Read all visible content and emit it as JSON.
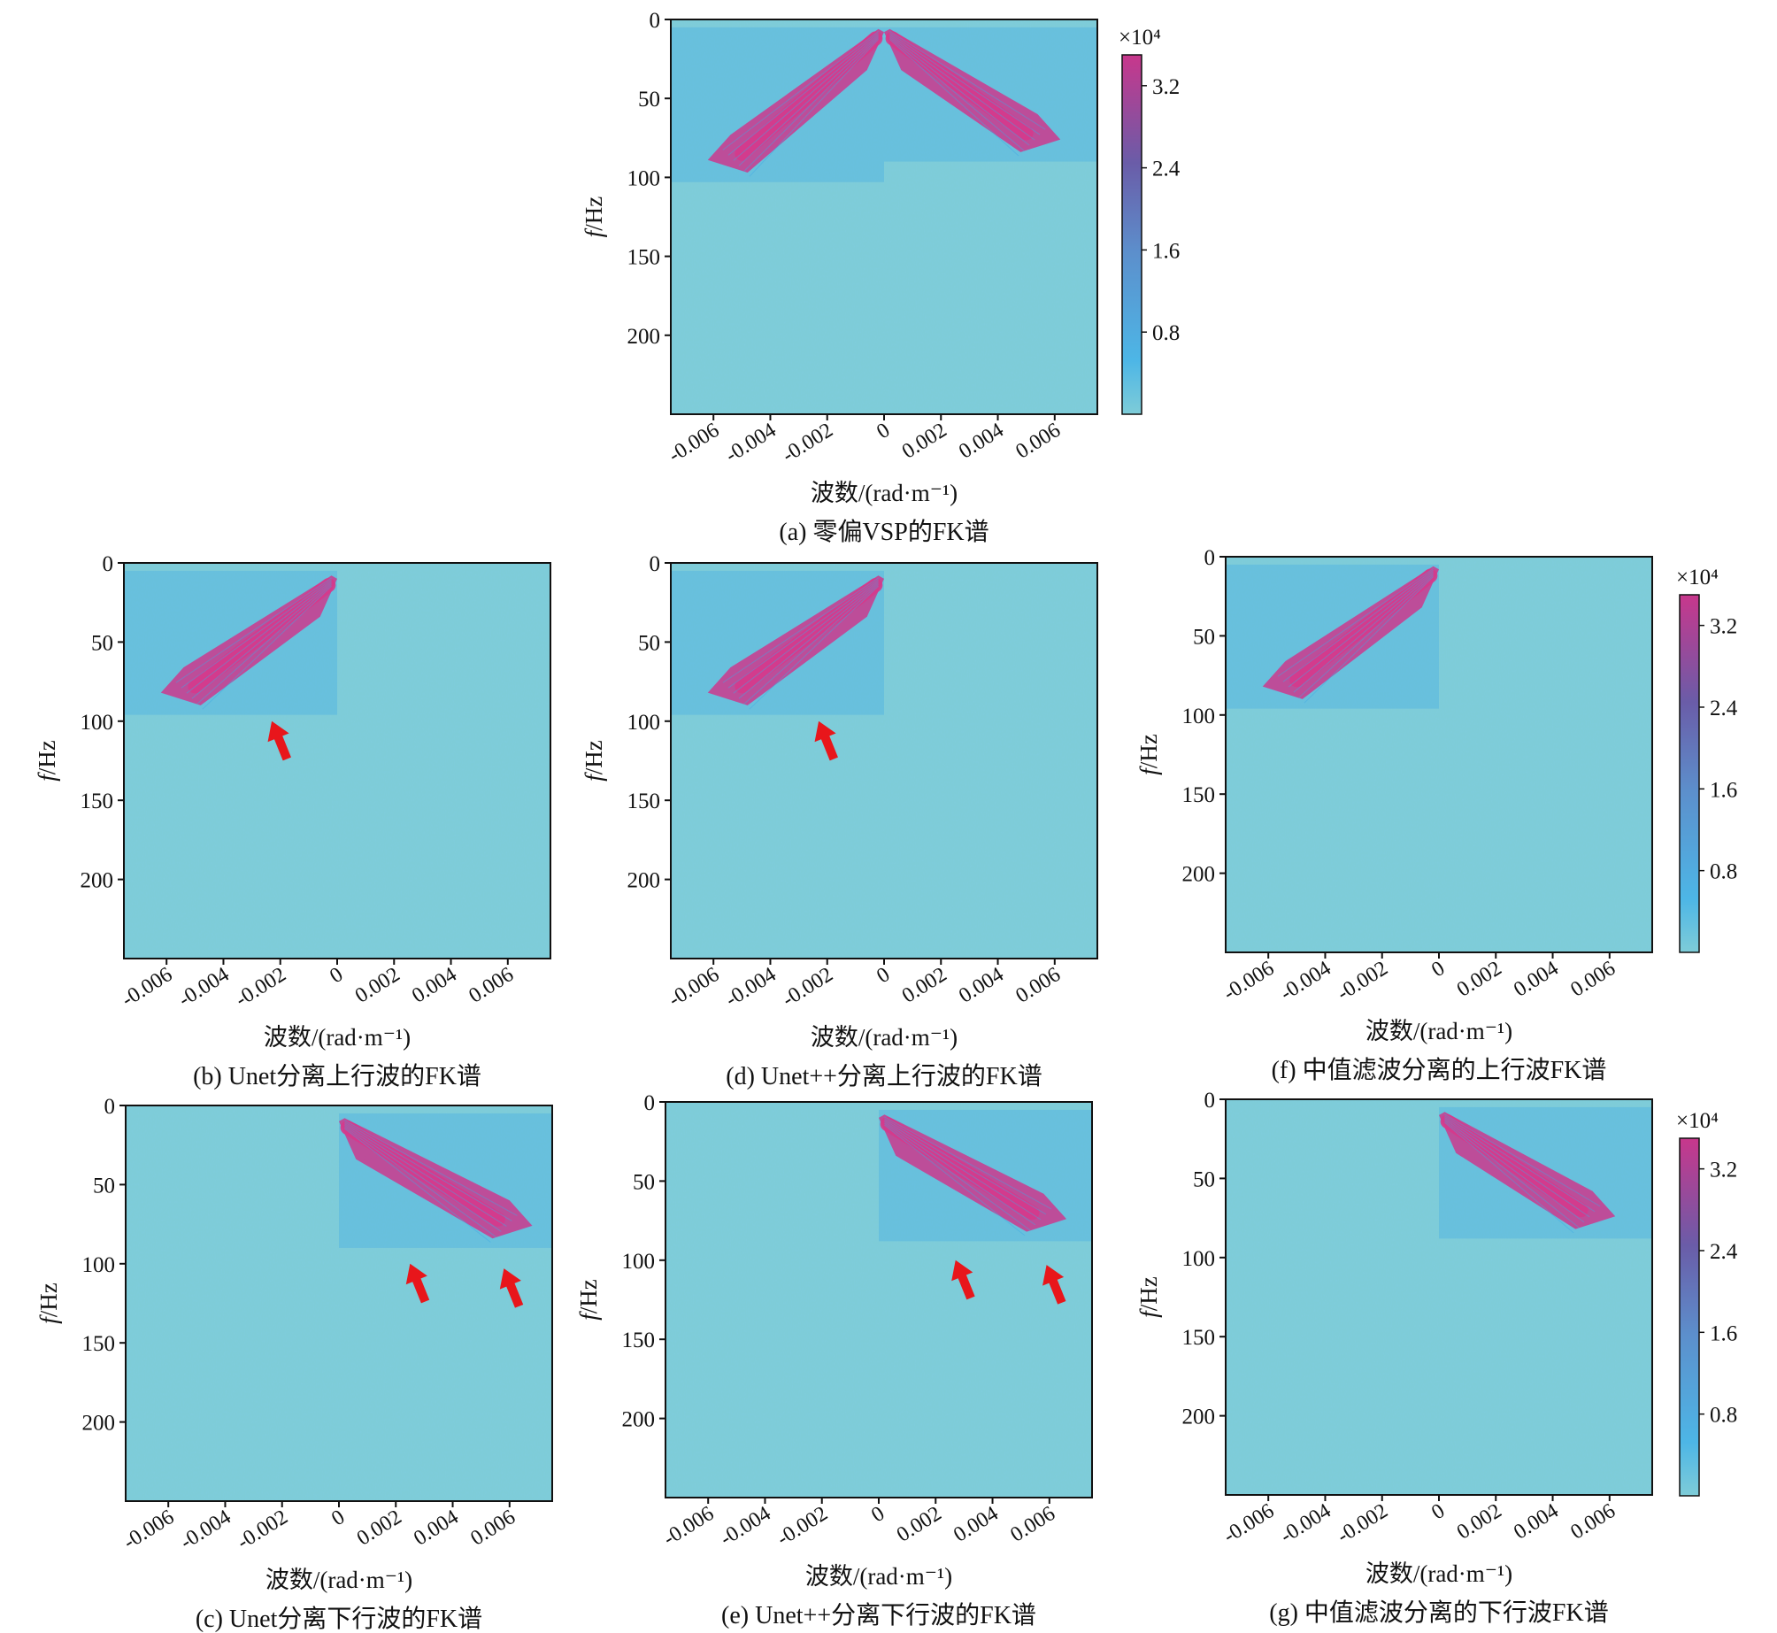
{
  "chart_data": [
    {
      "id": "a",
      "type": "heatmap",
      "title": "(a) 零偏VSP的FK谱",
      "xlabel": "波数/(rad·m⁻¹)",
      "ylabel": "f/Hz",
      "xlim": [
        -0.0075,
        0.0075
      ],
      "ylim": [
        250,
        0
      ],
      "xticks": [
        -0.006,
        -0.004,
        -0.002,
        0,
        0.002,
        0.004,
        0.006
      ],
      "xtick_labels": [
        "-0.006",
        "-0.004",
        "-0.002",
        "0",
        "0.002",
        "0.004",
        "0.006"
      ],
      "yticks": [
        0,
        50,
        100,
        150,
        200
      ],
      "ytick_labels": [
        "0",
        "50",
        "100",
        "150",
        "200"
      ],
      "energy_bands": [
        {
          "name": "upgoing",
          "k": [
            -0.0062,
            0.0
          ],
          "f": [
            95,
            8
          ]
        },
        {
          "name": "downgoing",
          "k": [
            0.0,
            0.0062
          ],
          "f": [
            8,
            82
          ]
        }
      ],
      "colorbar": true,
      "arrows": []
    },
    {
      "id": "b",
      "type": "heatmap",
      "title": "(b) Unet分离上行波的FK谱",
      "xlabel": "波数/(rad·m⁻¹)",
      "ylabel": "f/Hz",
      "xlim": [
        -0.0075,
        0.0075
      ],
      "ylim": [
        250,
        0
      ],
      "xticks": [
        -0.006,
        -0.004,
        -0.002,
        0,
        0.002,
        0.004,
        0.006
      ],
      "xtick_labels": [
        "-0.006",
        "-0.004",
        "-0.002",
        "0",
        "0.002",
        "0.004",
        "0.006"
      ],
      "yticks": [
        0,
        50,
        100,
        150,
        200
      ],
      "ytick_labels": [
        "0",
        "50",
        "100",
        "150",
        "200"
      ],
      "energy_bands": [
        {
          "name": "upgoing",
          "k": [
            -0.0062,
            0.0
          ],
          "f": [
            88,
            10
          ]
        }
      ],
      "colorbar": false,
      "arrows": [
        {
          "k": -0.0023,
          "f": 100
        }
      ]
    },
    {
      "id": "d",
      "type": "heatmap",
      "title": "(d) Unet++分离上行波的FK谱",
      "xlabel": "波数/(rad·m⁻¹)",
      "ylabel": "f/Hz",
      "xlim": [
        -0.0075,
        0.0075
      ],
      "ylim": [
        250,
        0
      ],
      "xticks": [
        -0.006,
        -0.004,
        -0.002,
        0,
        0.002,
        0.004,
        0.006
      ],
      "xtick_labels": [
        "-0.006",
        "-0.004",
        "-0.002",
        "0",
        "0.002",
        "0.004",
        "0.006"
      ],
      "yticks": [
        0,
        50,
        100,
        150,
        200
      ],
      "ytick_labels": [
        "0",
        "50",
        "100",
        "150",
        "200"
      ],
      "energy_bands": [
        {
          "name": "upgoing",
          "k": [
            -0.0062,
            0.0
          ],
          "f": [
            88,
            10
          ]
        }
      ],
      "colorbar": false,
      "arrows": [
        {
          "k": -0.0023,
          "f": 100
        }
      ]
    },
    {
      "id": "f",
      "type": "heatmap",
      "title": "(f) 中值滤波分离的上行波FK谱",
      "xlabel": "波数/(rad·m⁻¹)",
      "ylabel": "f/Hz",
      "xlim": [
        -0.0075,
        0.0075
      ],
      "ylim": [
        250,
        0
      ],
      "xticks": [
        -0.006,
        -0.004,
        -0.002,
        0,
        0.002,
        0.004,
        0.006
      ],
      "xtick_labels": [
        "-0.006",
        "-0.004",
        "-0.002",
        "0",
        "0.002",
        "0.004",
        "0.006"
      ],
      "yticks": [
        0,
        50,
        100,
        150,
        200
      ],
      "ytick_labels": [
        "0",
        "50",
        "100",
        "150",
        "200"
      ],
      "energy_bands": [
        {
          "name": "upgoing",
          "k": [
            -0.0062,
            0.0
          ],
          "f": [
            88,
            8
          ]
        }
      ],
      "colorbar": true,
      "arrows": []
    },
    {
      "id": "c",
      "type": "heatmap",
      "title": "(c) Unet分离下行波的FK谱",
      "xlabel": "波数/(rad·m⁻¹)",
      "ylabel": "f/Hz",
      "xlim": [
        -0.0075,
        0.0075
      ],
      "ylim": [
        250,
        0
      ],
      "xticks": [
        -0.006,
        -0.004,
        -0.002,
        0,
        0.002,
        0.004,
        0.006
      ],
      "xtick_labels": [
        "-0.006",
        "-0.004",
        "-0.002",
        "0",
        "0.002",
        "0.004",
        "0.006"
      ],
      "yticks": [
        0,
        50,
        100,
        150,
        200
      ],
      "ytick_labels": [
        "0",
        "50",
        "100",
        "150",
        "200"
      ],
      "energy_bands": [
        {
          "name": "downgoing",
          "k": [
            0.0,
            0.0068
          ],
          "f": [
            10,
            82
          ]
        }
      ],
      "colorbar": false,
      "arrows": [
        {
          "k": 0.0025,
          "f": 100
        },
        {
          "k": 0.0058,
          "f": 103
        }
      ]
    },
    {
      "id": "e",
      "type": "heatmap",
      "title": "(e) Unet++分离下行波的FK谱",
      "xlabel": "波数/(rad·m⁻¹)",
      "ylabel": "f/Hz",
      "xlim": [
        -0.0075,
        0.0075
      ],
      "ylim": [
        250,
        0
      ],
      "xticks": [
        -0.006,
        -0.004,
        -0.002,
        0,
        0.002,
        0.004,
        0.006
      ],
      "xtick_labels": [
        "-0.006",
        "-0.004",
        "-0.002",
        "0",
        "0.002",
        "0.004",
        "0.006"
      ],
      "yticks": [
        0,
        50,
        100,
        150,
        200
      ],
      "ytick_labels": [
        "0",
        "50",
        "100",
        "150",
        "200"
      ],
      "energy_bands": [
        {
          "name": "downgoing",
          "k": [
            0.0,
            0.0066
          ],
          "f": [
            10,
            80
          ]
        }
      ],
      "colorbar": false,
      "arrows": [
        {
          "k": 0.0027,
          "f": 100
        },
        {
          "k": 0.0059,
          "f": 103
        }
      ]
    },
    {
      "id": "g",
      "type": "heatmap",
      "title": "(g) 中值滤波分离的下行波FK谱",
      "xlabel": "波数/(rad·m⁻¹)",
      "ylabel": "f/Hz",
      "xlim": [
        -0.0075,
        0.0075
      ],
      "ylim": [
        250,
        0
      ],
      "xticks": [
        -0.006,
        -0.004,
        -0.002,
        0,
        0.002,
        0.004,
        0.006
      ],
      "xtick_labels": [
        "-0.006",
        "-0.004",
        "-0.002",
        "0",
        "0.002",
        "0.004",
        "0.006"
      ],
      "yticks": [
        0,
        50,
        100,
        150,
        200
      ],
      "ytick_labels": [
        "0",
        "50",
        "100",
        "150",
        "200"
      ],
      "energy_bands": [
        {
          "name": "downgoing",
          "k": [
            0.0,
            0.0062
          ],
          "f": [
            10,
            80
          ]
        }
      ],
      "colorbar": true,
      "arrows": []
    }
  ],
  "colorbar": {
    "multiplier": "×10⁴",
    "ticks": [
      3.2,
      2.4,
      1.6,
      0.8
    ],
    "tick_labels": [
      "3.2",
      "2.4",
      "1.6",
      "0.8"
    ],
    "range": [
      0,
      3.5
    ]
  },
  "colors": {
    "background": "#7ECCD8",
    "weak": "#5DB8DE",
    "mid": "#3FA9E5",
    "strong": "#C83C90",
    "peak": "#D63A8C",
    "arrow": "#E8161B",
    "axis": "#111111"
  }
}
